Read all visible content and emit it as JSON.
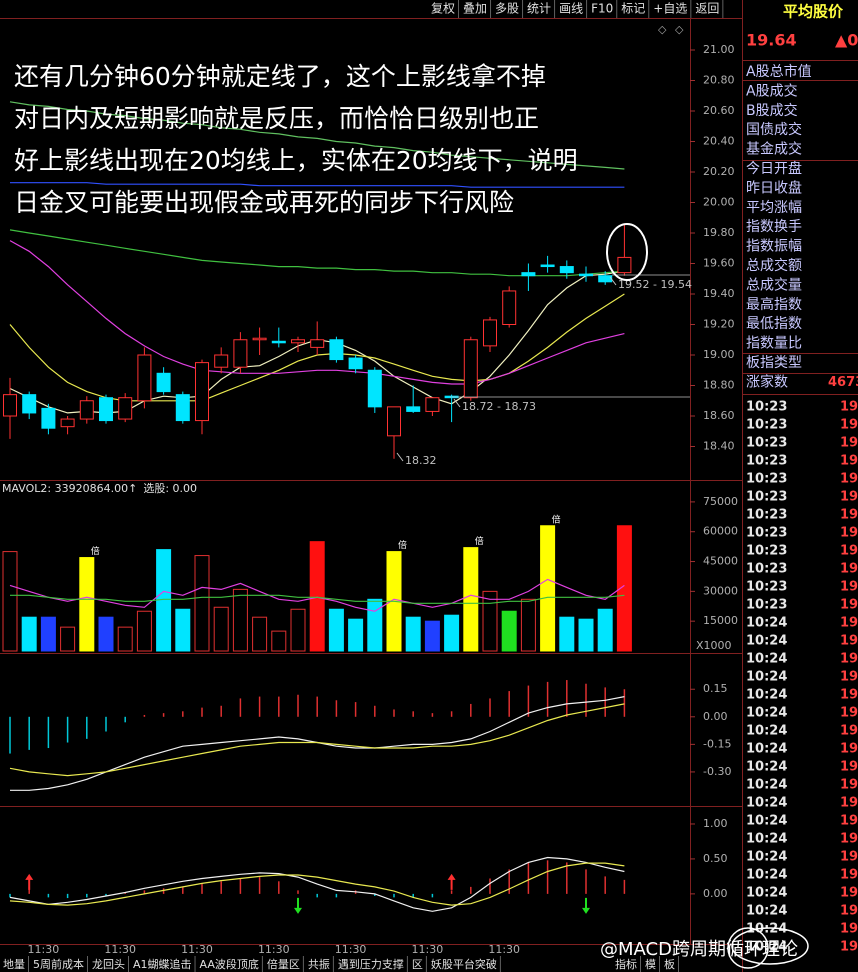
{
  "toolbar": [
    "复权",
    "叠加",
    "多股",
    "统计",
    "画线",
    "F10",
    "标记",
    "+自选",
    "返回"
  ],
  "tabs": [
    "地量",
    "5周前成本",
    "龙回头",
    "A1蝴蝶追击",
    "AA波段顶底",
    "倍量区",
    "共振",
    "遇到压力支撑",
    "区",
    "妖股平台突破",
    "指标",
    "模",
    "板"
  ],
  "watermark": "@MACD跨周期循环理论",
  "right_panel": {
    "title": "平均股价",
    "price": "19.64",
    "change": "▲0",
    "items": [
      "A股总市值",
      "A股成交",
      "B股成交",
      "国债成交",
      "基金成交",
      "今日开盘",
      "昨日收盘",
      "平均涨幅",
      "指数换手",
      "指数振幅",
      "总成交额",
      "总成交量",
      "最高指数",
      "最低指数",
      "指数量比",
      "板指类型",
      "涨家数"
    ],
    "rise_count": "4673",
    "rows": [
      {
        "time": "10:23",
        "price": "19"
      },
      {
        "time": "10:23",
        "price": "19"
      },
      {
        "time": "10:23",
        "price": "19"
      },
      {
        "time": "10:23",
        "price": "19"
      },
      {
        "time": "10:23",
        "price": "19"
      },
      {
        "time": "10:23",
        "price": "19"
      },
      {
        "time": "10:23",
        "price": "19"
      },
      {
        "time": "10:23",
        "price": "19"
      },
      {
        "time": "10:23",
        "price": "19"
      },
      {
        "time": "10:23",
        "price": "19"
      },
      {
        "time": "10:23",
        "price": "19"
      },
      {
        "time": "10:23",
        "price": "19"
      },
      {
        "time": "10:24",
        "price": "19"
      },
      {
        "time": "10:24",
        "price": "19"
      },
      {
        "time": "10:24",
        "price": "19"
      },
      {
        "time": "10:24",
        "price": "19"
      },
      {
        "time": "10:24",
        "price": "19"
      },
      {
        "time": "10:24",
        "price": "19"
      },
      {
        "time": "10:24",
        "price": "19"
      },
      {
        "time": "10:24",
        "price": "19"
      },
      {
        "time": "10:24",
        "price": "19"
      },
      {
        "time": "10:24",
        "price": "19"
      },
      {
        "time": "10:24",
        "price": "19"
      },
      {
        "time": "10:24",
        "price": "19"
      },
      {
        "time": "10:24",
        "price": "19"
      },
      {
        "time": "10:24",
        "price": "19"
      },
      {
        "time": "10:24",
        "price": "19"
      },
      {
        "time": "10:24",
        "price": "19"
      },
      {
        "time": "10:24",
        "price": "19"
      },
      {
        "time": "10:24",
        "price": "19"
      },
      {
        "time": "10:24",
        "price": "19"
      }
    ]
  },
  "chart_data": [
    {
      "type": "candlestick",
      "annotation": [
        "还有几分钟60分钟就定线了，这个上影线拿不掉",
        "对日内及短期影响就是反压，而恰恰日级别也正",
        "好上影线出现在20均线上，实体在20均线下，说明",
        "日金叉可能要出现假金或再死的同步下行风险"
      ],
      "price_labels": [
        "18.72 - 18.73",
        "18.32",
        "19.52 - 19.54"
      ],
      "categories": [
        null,
        null,
        "11:30",
        null,
        null,
        null,
        "11:30",
        null,
        null,
        null,
        "11:30",
        null,
        null,
        null,
        "11:30",
        null,
        null,
        null,
        "11:30",
        null,
        null,
        null,
        "11:30",
        null,
        null,
        null,
        "11:30",
        null,
        null,
        null,
        null,
        null,
        null
      ],
      "open": [
        18.6,
        18.74,
        18.65,
        18.53,
        18.58,
        18.72,
        18.58,
        18.7,
        18.88,
        18.74,
        18.57,
        18.92,
        18.92,
        19.1,
        19.09,
        19.08,
        19.05,
        19.1,
        18.98,
        18.9,
        18.47,
        18.66,
        18.63,
        18.73,
        18.72,
        19.06,
        19.2,
        19.54,
        19.59,
        19.58,
        19.53,
        19.52,
        19.54
      ],
      "high": [
        18.85,
        18.76,
        18.68,
        18.6,
        18.73,
        18.74,
        18.75,
        19.05,
        18.92,
        18.76,
        18.97,
        19.05,
        19.15,
        19.18,
        19.18,
        19.12,
        19.22,
        19.12,
        19.0,
        18.92,
        18.66,
        18.8,
        18.72,
        18.74,
        19.12,
        19.25,
        19.45,
        19.6,
        19.65,
        19.62,
        19.58,
        19.55,
        19.86
      ],
      "low": [
        18.45,
        18.58,
        18.48,
        18.48,
        18.55,
        18.55,
        18.56,
        18.65,
        18.74,
        18.55,
        18.48,
        18.88,
        18.88,
        19.0,
        19.05,
        19.02,
        19.0,
        18.95,
        18.88,
        18.62,
        18.32,
        18.62,
        18.6,
        18.56,
        18.7,
        19.02,
        19.18,
        19.42,
        19.54,
        19.5,
        19.48,
        19.46,
        19.52
      ],
      "close": [
        18.74,
        18.62,
        18.52,
        18.58,
        18.7,
        18.57,
        18.72,
        19.0,
        18.76,
        18.57,
        18.95,
        19.0,
        19.1,
        19.11,
        19.08,
        19.1,
        19.1,
        18.97,
        18.91,
        18.66,
        18.66,
        18.63,
        18.72,
        18.72,
        19.1,
        19.23,
        19.42,
        19.52,
        19.58,
        19.54,
        19.52,
        19.48,
        19.64
      ],
      "up_color": "#ff3232",
      "down_color": "#00e5ff",
      "series": [
        {
          "color": "#f0f0c0",
          "values": [
            18.78,
            18.72,
            18.66,
            18.62,
            18.63,
            18.62,
            18.63,
            18.7,
            18.73,
            18.72,
            18.73,
            18.84,
            18.92,
            18.93,
            18.99,
            19.06,
            19.1,
            19.08,
            19.03,
            18.96,
            18.86,
            18.79,
            18.72,
            18.68,
            18.76,
            18.86,
            19.0,
            19.16,
            19.33,
            19.44,
            19.52,
            19.53,
            19.55
          ]
        },
        {
          "color": "#e8e850",
          "values": [
            19.2,
            19.05,
            18.92,
            18.82,
            18.76,
            18.72,
            18.7,
            18.7,
            18.7,
            18.7,
            18.7,
            18.75,
            18.8,
            18.85,
            18.9,
            18.96,
            19.0,
            19.01,
            19.0,
            18.98,
            18.94,
            18.9,
            18.86,
            18.84,
            18.83,
            18.84,
            18.88,
            18.96,
            19.05,
            19.15,
            19.24,
            19.32,
            19.4
          ]
        },
        {
          "color": "#e040e0",
          "values": [
            19.75,
            19.68,
            19.58,
            19.46,
            19.35,
            19.24,
            19.14,
            19.06,
            18.99,
            18.94,
            18.9,
            18.89,
            18.88,
            18.88,
            18.88,
            18.89,
            18.9,
            18.9,
            18.89,
            18.88,
            18.86,
            18.84,
            18.82,
            18.81,
            18.81,
            18.84,
            18.88,
            18.93,
            18.98,
            19.03,
            19.08,
            19.11,
            19.14
          ]
        },
        {
          "color": "#40c040",
          "values": [
            19.82,
            19.8,
            19.78,
            19.76,
            19.74,
            19.72,
            19.7,
            19.68,
            19.66,
            19.64,
            19.62,
            19.61,
            19.6,
            19.59,
            19.58,
            19.58,
            19.57,
            19.57,
            19.56,
            19.56,
            19.55,
            19.55,
            19.54,
            19.54,
            19.53,
            19.53,
            19.52,
            19.52,
            19.52,
            19.52,
            19.53,
            19.54,
            19.55
          ]
        },
        {
          "color": "#60c060",
          "values": [
            20.66,
            20.64,
            20.63,
            20.61,
            20.6,
            20.58,
            20.57,
            20.55,
            20.54,
            20.52,
            20.51,
            20.49,
            20.48,
            20.46,
            20.45,
            20.43,
            20.42,
            20.4,
            20.39,
            20.37,
            20.36,
            20.34,
            20.33,
            20.31,
            20.3,
            20.29,
            20.28,
            20.27,
            20.26,
            20.25,
            20.24,
            20.23,
            20.22
          ]
        },
        {
          "color": "#3050ff",
          "values": [
            20.13,
            20.13,
            20.13,
            20.13,
            20.13,
            20.12,
            20.12,
            20.12,
            20.12,
            20.12,
            20.12,
            20.12,
            20.12,
            20.11,
            20.11,
            20.11,
            20.11,
            20.11,
            20.11,
            20.11,
            20.11,
            20.11,
            20.11,
            20.11,
            20.1,
            20.1,
            20.1,
            20.1,
            20.1,
            20.1,
            20.1,
            20.1,
            20.1
          ]
        }
      ],
      "ylim": [
        18.2,
        21.2
      ],
      "yticks": [
        {
          "value": 21,
          "label": "21.00"
        },
        {
          "value": 20.8,
          "label": "20.80"
        },
        {
          "value": 20.6,
          "label": "20.60"
        },
        {
          "value": 20.4,
          "label": "20.40"
        },
        {
          "value": 20.2,
          "label": "20.20"
        },
        {
          "value": 20,
          "label": "20.00"
        },
        {
          "value": 19.8,
          "label": "19.80"
        },
        {
          "value": 19.6,
          "label": "19.60"
        },
        {
          "value": 19.4,
          "label": "19.40"
        },
        {
          "value": 19.2,
          "label": "19.20"
        },
        {
          "value": 19,
          "label": "19.00"
        },
        {
          "value": 18.8,
          "label": "18.80"
        },
        {
          "value": 18.6,
          "label": "18.60"
        },
        {
          "value": 18.4,
          "label": "18.40"
        }
      ]
    },
    {
      "type": "bar",
      "title": "MAVOL2: 33920864.00↑",
      "subtitle": "选股: 0.00",
      "unit_label": "X1000",
      "flag": "倍",
      "flagged": [
        4,
        20,
        24,
        28
      ],
      "values": [
        50000,
        17000,
        17000,
        12000,
        47000,
        17000,
        12000,
        20000,
        51000,
        21000,
        48000,
        22000,
        31000,
        17000,
        10000,
        21000,
        55000,
        21000,
        16000,
        26000,
        50000,
        17000,
        15000,
        18000,
        52000,
        30000,
        20000,
        26000,
        63000,
        17000,
        16000,
        21000,
        63000
      ],
      "colors": [
        "#e03030",
        "#00e5ff",
        "#2040ff",
        "#e03030",
        "#ffff00",
        "#2040ff",
        "#e03030",
        "#e03030",
        "#00e5ff",
        "#00e5ff",
        "#e03030",
        "#e03030",
        "#e03030",
        "#e03030",
        "#e03030",
        "#e03030",
        "#ff1010",
        "#00e5ff",
        "#00e5ff",
        "#00e5ff",
        "#ffff00",
        "#00e5ff",
        "#2040ff",
        "#00e5ff",
        "#ffff00",
        "#e03030",
        "#20e020",
        "#e03030",
        "#ffff00",
        "#00e5ff",
        "#00e5ff",
        "#00e5ff",
        "#ff1010"
      ],
      "outline_color": "#e03030",
      "series": [
        {
          "color": "#e040e0",
          "values": [
            33000,
            30000,
            27000,
            25000,
            27000,
            25000,
            23000,
            22000,
            30000,
            28000,
            32000,
            31000,
            34000,
            30000,
            26000,
            25000,
            27000,
            25000,
            22000,
            20000,
            26000,
            24000,
            22000,
            24000,
            28000,
            26000,
            26000,
            30000,
            36000,
            32000,
            28000,
            26000,
            33000
          ]
        },
        {
          "color": "#40c040",
          "values": [
            28000,
            28000,
            27000,
            26000,
            26000,
            26000,
            25000,
            25000,
            26000,
            26000,
            27000,
            27000,
            28000,
            28000,
            28000,
            27000,
            27000,
            26000,
            25000,
            25000,
            25000,
            24000,
            24000,
            24000,
            24000,
            24000,
            25000,
            25000,
            27000,
            27000,
            27000,
            27000,
            28000
          ]
        }
      ],
      "ylim": [
        0,
        84000
      ],
      "yticks": [
        75000,
        60000,
        45000,
        30000,
        15000
      ]
    },
    {
      "type": "macd",
      "values": [
        -0.2,
        -0.18,
        -0.17,
        -0.14,
        -0.12,
        -0.08,
        -0.03,
        0.01,
        0.02,
        0.03,
        0.05,
        0.06,
        0.1,
        0.11,
        0.11,
        0.12,
        0.11,
        0.09,
        0.08,
        0.06,
        0.04,
        0.03,
        0.02,
        0.03,
        0.07,
        0.1,
        0.14,
        0.17,
        0.19,
        0.2,
        0.18,
        0.16,
        0.15
      ],
      "up_color": "#e03030",
      "down_color": "#00c8d8",
      "series": [
        {
          "color": "#f0f0f0",
          "values": [
            -0.4,
            -0.4,
            -0.39,
            -0.37,
            -0.34,
            -0.3,
            -0.26,
            -0.22,
            -0.19,
            -0.16,
            -0.15,
            -0.14,
            -0.13,
            -0.12,
            -0.11,
            -0.12,
            -0.14,
            -0.16,
            -0.17,
            -0.17,
            -0.16,
            -0.15,
            -0.15,
            -0.14,
            -0.12,
            -0.08,
            -0.03,
            0.02,
            0.05,
            0.07,
            0.08,
            0.09,
            0.11
          ]
        },
        {
          "color": "#e8e850",
          "values": [
            -0.28,
            -0.3,
            -0.31,
            -0.32,
            -0.31,
            -0.3,
            -0.28,
            -0.26,
            -0.24,
            -0.22,
            -0.2,
            -0.18,
            -0.16,
            -0.15,
            -0.14,
            -0.14,
            -0.14,
            -0.15,
            -0.16,
            -0.17,
            -0.17,
            -0.17,
            -0.16,
            -0.16,
            -0.15,
            -0.13,
            -0.1,
            -0.06,
            -0.02,
            0.01,
            0.03,
            0.05,
            0.07
          ]
        }
      ],
      "ylim": [
        -0.48,
        0.32
      ],
      "yticks": [
        0.15,
        {
          "value": 0,
          "label": "0.00"
        },
        -0.15,
        {
          "value": -0.3,
          "label": "-0.30"
        }
      ]
    },
    {
      "type": "macd",
      "values": [
        -0.05,
        0.1,
        -0.05,
        -0.06,
        -0.05,
        -0.03,
        0.02,
        0.05,
        0.08,
        0.1,
        0.15,
        0.18,
        0.22,
        0.24,
        0.18,
        0.05,
        -0.05,
        -0.05,
        0.05,
        -0.03,
        -0.05,
        -0.05,
        -0.05,
        0.05,
        0.1,
        0.22,
        0.35,
        0.45,
        0.48,
        0.45,
        0.35,
        0.25,
        0.2
      ],
      "up_color": "#e03030",
      "down_color": "#00c8d8",
      "buy_signals": [
        1,
        23
      ],
      "sell_signals": [
        15,
        30
      ],
      "series": [
        {
          "color": "#f0f0f0",
          "values": [
            -0.05,
            -0.1,
            -0.15,
            -0.12,
            -0.08,
            -0.03,
            0.02,
            0.08,
            0.13,
            0.18,
            0.22,
            0.25,
            0.28,
            0.3,
            0.29,
            0.24,
            0.14,
            0.05,
            0.03,
            0.0,
            -0.1,
            -0.2,
            -0.25,
            -0.2,
            -0.05,
            0.15,
            0.32,
            0.45,
            0.52,
            0.5,
            0.45,
            0.38,
            0.32
          ]
        },
        {
          "color": "#e8e850",
          "values": [
            -0.1,
            -0.12,
            -0.15,
            -0.16,
            -0.14,
            -0.1,
            -0.05,
            0.0,
            0.05,
            0.1,
            0.15,
            0.19,
            0.22,
            0.25,
            0.27,
            0.27,
            0.24,
            0.19,
            0.14,
            0.1,
            0.04,
            -0.05,
            -0.12,
            -0.16,
            -0.14,
            -0.05,
            0.07,
            0.2,
            0.32,
            0.4,
            0.44,
            0.44,
            0.4
          ]
        }
      ],
      "ylim": [
        -0.66,
        1.2
      ],
      "yticks": [
        {
          "value": 1,
          "label": "1.00"
        },
        {
          "value": 0.5,
          "label": "0.50"
        },
        {
          "value": 0,
          "label": "0.00"
        }
      ]
    }
  ]
}
